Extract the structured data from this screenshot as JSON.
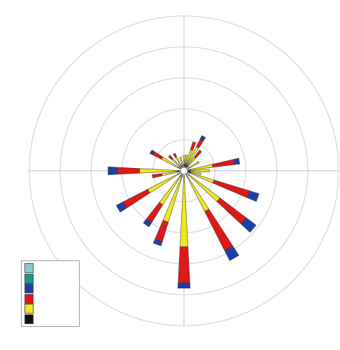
{
  "chart_data": {
    "type": "wind-rose",
    "title": "",
    "rings": [
      5,
      10,
      15,
      20,
      25
    ],
    "ring_labels": [
      "",
      "",
      "",
      "",
      ""
    ],
    "direction_labels": [
      "",
      "",
      "",
      ""
    ],
    "speed_classes": [
      {
        "label": "",
        "color": "#8ec8d8"
      },
      {
        "label": "",
        "color": "#1a9a8a"
      },
      {
        "label": "",
        "color": "#1f3fa8"
      },
      {
        "label": "",
        "color": "#e01818"
      },
      {
        "label": "",
        "color": "#f2e81a"
      },
      {
        "label": "",
        "color": "#111111"
      }
    ],
    "sectors": [
      {
        "direction": 0,
        "values": [
          0,
          0,
          0.0,
          0.0,
          1.4,
          0.4
        ]
      },
      {
        "direction": 10,
        "values": [
          0,
          0,
          0.0,
          0.0,
          1.5,
          0.4
        ]
      },
      {
        "direction": 20,
        "values": [
          0,
          0,
          0.0,
          1.3,
          2.5,
          0.4
        ]
      },
      {
        "direction": 30,
        "values": [
          0,
          0,
          0.6,
          1.4,
          3.3,
          0.4
        ]
      },
      {
        "direction": 40,
        "values": [
          0,
          0,
          0.0,
          1.4,
          1.7,
          0.4
        ]
      },
      {
        "direction": 60,
        "values": [
          0,
          0,
          0.0,
          0.0,
          1.7,
          0.4
        ]
      },
      {
        "direction": 80,
        "values": [
          0,
          0,
          0.9,
          3.5,
          3.6,
          0.4
        ]
      },
      {
        "direction": 90,
        "values": [
          0,
          0,
          0.0,
          0.0,
          3.0,
          0.4
        ]
      },
      {
        "direction": 100,
        "values": [
          0,
          0,
          0.0,
          0.0,
          1.7,
          0.4
        ]
      },
      {
        "direction": 110,
        "values": [
          0,
          0,
          1.6,
          6.0,
          4.0,
          0.4
        ]
      },
      {
        "direction": 130,
        "values": [
          0,
          0,
          2.0,
          5.3,
          6.2,
          0.4
        ]
      },
      {
        "direction": 150,
        "values": [
          0,
          0,
          1.8,
          7.1,
          6.3,
          0.4
        ]
      },
      {
        "direction": 180,
        "values": [
          0,
          0,
          0.9,
          5.8,
          11.2,
          0.4
        ]
      },
      {
        "direction": 200,
        "values": [
          0,
          0,
          0.7,
          3.3,
          7.6,
          0.4
        ]
      },
      {
        "direction": 215,
        "values": [
          0,
          0,
          0.8,
          3.4,
          5.4,
          0.4
        ]
      },
      {
        "direction": 240,
        "values": [
          0,
          0,
          1.2,
          4.5,
          5.5,
          0.4
        ]
      },
      {
        "direction": 260,
        "values": [
          0,
          0,
          0.0,
          1.6,
          2.5,
          0.4
        ]
      },
      {
        "direction": 270,
        "values": [
          0,
          0,
          1.5,
          3.6,
          6.1,
          0.4
        ]
      },
      {
        "direction": 300,
        "values": [
          0,
          0,
          0.5,
          1.6,
          3.0,
          0.4
        ]
      },
      {
        "direction": 315,
        "values": [
          0,
          0,
          0.0,
          0.7,
          1.6,
          0.4
        ]
      },
      {
        "direction": 330,
        "values": [
          0,
          0,
          0.0,
          0.6,
          1.5,
          0.4
        ]
      },
      {
        "direction": 345,
        "values": [
          0,
          0,
          0.0,
          0.0,
          1.2,
          0.4
        ]
      }
    ]
  }
}
